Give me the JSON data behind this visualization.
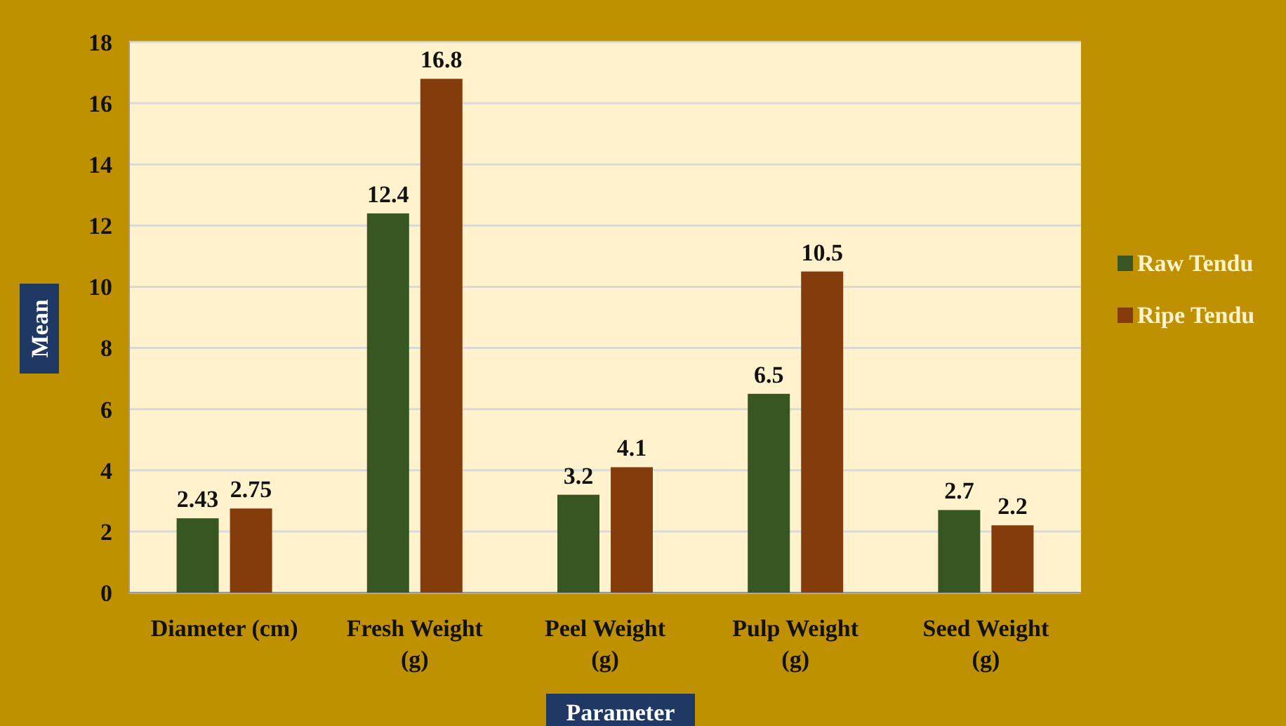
{
  "chart_data": {
    "type": "bar",
    "xlabel": "Parameter",
    "ylabel": "Mean",
    "categories": [
      "Diameter (cm)",
      "Fresh Weight (g)",
      "Peel Weight (g)",
      "Pulp Weight (g)",
      "Seed Weight (g)"
    ],
    "series": [
      {
        "name": "Raw Tendu",
        "color": "#375623",
        "values": [
          2.43,
          12.4,
          3.2,
          6.5,
          2.7
        ]
      },
      {
        "name": "Ripe Tendu",
        "color": "#843c0c",
        "values": [
          2.75,
          16.8,
          4.1,
          10.5,
          2.2
        ]
      }
    ],
    "ylim": [
      0,
      18
    ],
    "yticks": [
      0,
      2,
      4,
      6,
      8,
      10,
      12,
      14,
      16,
      18
    ],
    "grid": "y",
    "legend": "right",
    "data_labels": true
  }
}
